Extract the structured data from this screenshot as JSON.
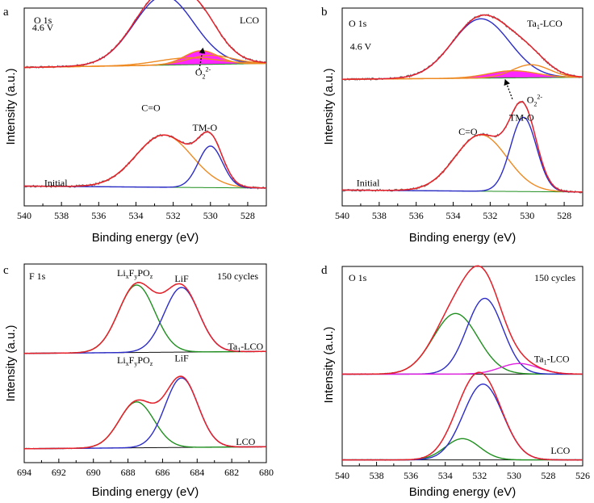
{
  "chart_data": [
    {
      "id": "a",
      "type": "line",
      "panel_label": "a",
      "xlabel": "Binding energy (eV)",
      "ylabel": "Intensity (a.u.)",
      "xlim": [
        540,
        527
      ],
      "xticks": [
        540,
        538,
        536,
        534,
        532,
        530,
        528
      ],
      "corner_left": "O 1s",
      "corner_right": "LCO",
      "annotations": [
        {
          "text": "4.6 V",
          "x": 539.0,
          "y": 0.885
        },
        {
          "text": "Initial",
          "x": 538.3,
          "y": 0.1
        },
        {
          "text": "C=O",
          "x": 533.2,
          "y": 0.48
        },
        {
          "text": "TM-O",
          "x": 530.3,
          "y": 0.38
        },
        {
          "base": "O",
          "sub": "2",
          "sup": "2-",
          "x": 530.4,
          "y": 0.66
        }
      ],
      "arrows": [
        {
          "from": [
            530.6,
            0.69
          ],
          "to": [
            530.4,
            0.8
          ]
        }
      ],
      "stacks": [
        {
          "label": "4.6 V",
          "baseline": 0.7,
          "baseline_end": 0.72,
          "scale": 0.35,
          "components": [
            {
              "center": 532.5,
              "height": 1.0,
              "width": 1.6
            },
            {
              "center": 530.5,
              "height": 0.2,
              "width": 0.9
            },
            {
              "center": 530.0,
              "height": 0.13,
              "width": 1.2
            },
            {
              "center": 531.2,
              "height": 0.1,
              "width": 1.6
            }
          ],
          "shaded_component": 1
        },
        {
          "label": "Initial",
          "baseline": 0.1,
          "baseline_end": 0.09,
          "scale": 0.3,
          "components": [
            {
              "center": 532.5,
              "height": 0.88,
              "width": 1.5
            },
            {
              "center": 530.0,
              "height": 0.7,
              "width": 0.65
            }
          ]
        }
      ]
    },
    {
      "id": "b",
      "type": "line",
      "panel_label": "b",
      "xlabel": "Binding energy (eV)",
      "ylabel": "Intensity (a.u.)",
      "xlim": [
        540,
        527
      ],
      "xticks": [
        540,
        538,
        536,
        534,
        532,
        530,
        528
      ],
      "corner_left": "O 1s",
      "corner_right_base": "Ta",
      "corner_right_sub": "1",
      "corner_right_tail": "-LCO",
      "annotations": [
        {
          "text": "4.6 V",
          "x": 539.0,
          "y": 0.79
        },
        {
          "text": "Initial",
          "x": 538.6,
          "y": 0.1
        },
        {
          "text": "C=O",
          "x": 533.2,
          "y": 0.36
        },
        {
          "text": "TM-O",
          "x": 530.3,
          "y": 0.43
        },
        {
          "base": "O",
          "sub": "2",
          "sup": "2-",
          "x": 529.6,
          "y": 0.52
        }
      ],
      "arrows": [
        {
          "from": [
            530.8,
            0.54
          ],
          "to": [
            531.2,
            0.64
          ]
        }
      ],
      "stacks": [
        {
          "label": "4.6 V",
          "baseline": 0.64,
          "baseline_end": 0.65,
          "scale": 0.3,
          "components": [
            {
              "center": 532.5,
              "height": 1.0,
              "width": 1.55
            },
            {
              "center": 529.8,
              "height": 0.22,
              "width": 1.0
            },
            {
              "center": 530.8,
              "height": 0.12,
              "width": 1.3
            }
          ],
          "shaded_component": 2
        },
        {
          "label": "Initial",
          "baseline": 0.08,
          "baseline_end": 0.07,
          "scale": 0.3,
          "components": [
            {
              "center": 532.5,
              "height": 0.95,
              "width": 1.4
            },
            {
              "center": 530.2,
              "height": 1.25,
              "width": 0.7
            }
          ]
        }
      ]
    },
    {
      "id": "c",
      "type": "line",
      "panel_label": "c",
      "xlabel": "Binding energy (eV)",
      "ylabel": "Intensity (a.u.)",
      "xlim": [
        694,
        680
      ],
      "xticks": [
        694,
        692,
        690,
        688,
        686,
        684,
        682,
        680
      ],
      "corner_left": "F 1s",
      "corner_right": "150 cycles",
      "annotations": [
        {
          "base": "Li",
          "subs": [
            "x",
            "y",
            "z"
          ],
          "pattern": "LixFyPOz",
          "x": 687.6,
          "y": 0.94
        },
        {
          "text": "LiF",
          "x": 684.9,
          "y": 0.91
        },
        {
          "base": "Ta",
          "sub": "1",
          "tail": "-LCO",
          "x": 681.2,
          "y": 0.57
        },
        {
          "base": "Li",
          "subs": [
            "x",
            "y",
            "z"
          ],
          "pattern": "LixFyPOz",
          "x": 687.6,
          "y": 0.5
        },
        {
          "text": "LiF",
          "x": 684.9,
          "y": 0.51
        },
        {
          "text": "LCO",
          "x": 681.2,
          "y": 0.09
        }
      ],
      "stacks": [
        {
          "label": "Ta1-LCO",
          "baseline": 0.55,
          "baseline_end": 0.56,
          "scale": 0.35,
          "components": [
            {
              "center": 687.5,
              "height": 0.97,
              "width": 1.05
            },
            {
              "center": 684.9,
              "height": 0.93,
              "width": 1.0
            }
          ]
        },
        {
          "label": "LCO",
          "baseline": 0.07,
          "baseline_end": 0.08,
          "scale": 0.35,
          "components": [
            {
              "center": 687.5,
              "height": 0.66,
              "width": 1.0
            },
            {
              "center": 684.9,
              "height": 1.0,
              "width": 0.95
            }
          ]
        }
      ]
    },
    {
      "id": "d",
      "type": "line",
      "panel_label": "d",
      "xlabel": "Binding energy (eV)",
      "ylabel": "Intensity (a.u.)",
      "xlim": [
        540,
        526
      ],
      "xticks": [
        540,
        538,
        536,
        534,
        532,
        530,
        528,
        526
      ],
      "corner_left": "O 1s",
      "corner_right": "150 cycles",
      "annotations": [
        {
          "base": "Ta",
          "sub": "1",
          "tail": "-LCO",
          "x": 527.8,
          "y": 0.52
        },
        {
          "text": "LCO",
          "x": 527.3,
          "y": 0.06
        }
      ],
      "stacks": [
        {
          "label": "Ta1-LCO",
          "baseline": 0.46,
          "baseline_end": 0.46,
          "scale": 0.38,
          "components": [
            {
              "center": 533.4,
              "height": 0.8,
              "width": 1.3
            },
            {
              "center": 531.7,
              "height": 1.0,
              "width": 1.05
            },
            {
              "center": 529.7,
              "height": 0.14,
              "width": 1.1
            }
          ]
        },
        {
          "label": "LCO",
          "baseline": 0.03,
          "baseline_end": 0.03,
          "scale": 0.38,
          "components": [
            {
              "center": 533.0,
              "height": 0.28,
              "width": 1.0
            },
            {
              "center": 531.8,
              "height": 1.0,
              "width": 1.15
            }
          ]
        }
      ]
    }
  ],
  "colors": {
    "raw": "#555555",
    "envelope": "#e8202a",
    "component_1": "#2c2cc8",
    "component_2": "#ef8a22",
    "component_green": "#1f8f1f",
    "component_magenta": "#e020e0",
    "baseline_green": "#1f8f1f",
    "baseline_black": "#111111",
    "shaded": "#ff00ff"
  }
}
